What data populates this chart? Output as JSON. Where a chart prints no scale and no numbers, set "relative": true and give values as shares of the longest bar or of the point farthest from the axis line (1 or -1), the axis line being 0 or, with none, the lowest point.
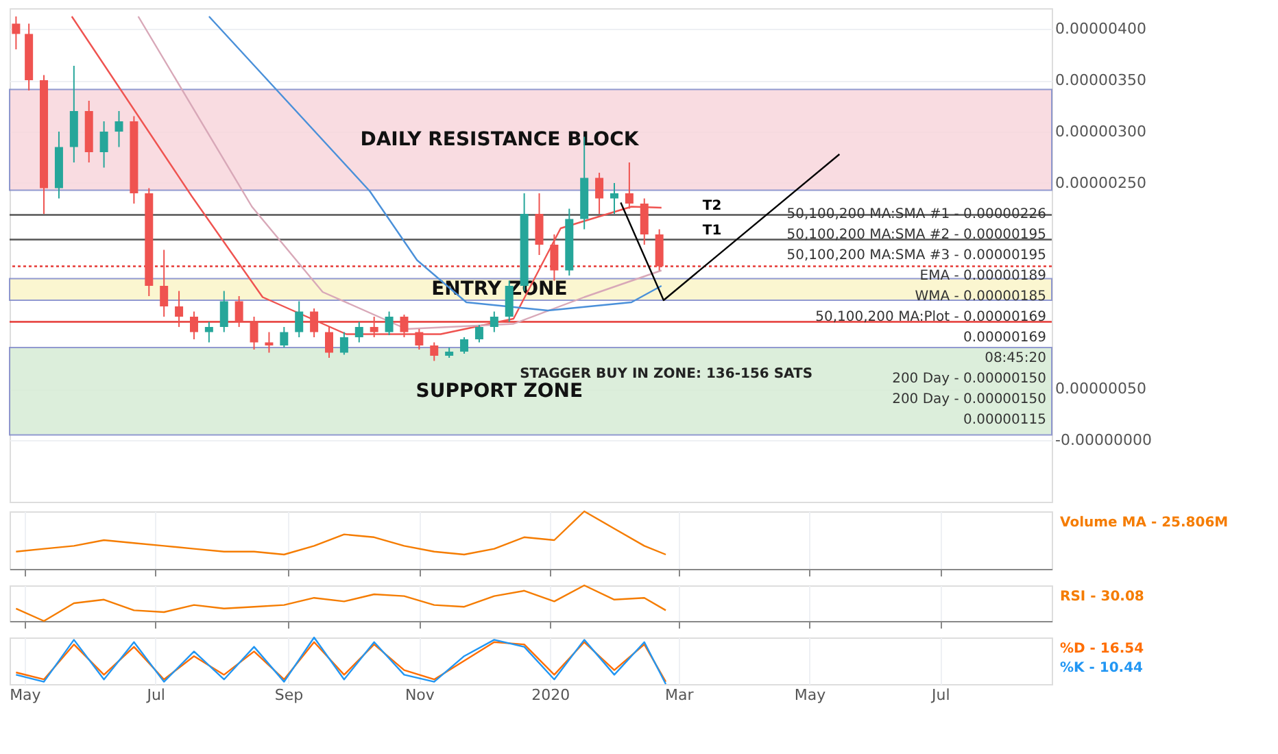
{
  "chart_data": [
    {
      "type": "candlestick",
      "x": [
        "2019-04-27",
        "2019-05-03",
        "2019-05-10",
        "2019-05-17",
        "2019-05-24",
        "2019-05-31",
        "2019-06-07",
        "2019-06-14",
        "2019-06-21",
        "2019-06-28",
        "2019-07-05",
        "2019-07-12",
        "2019-07-19",
        "2019-07-26",
        "2019-08-02",
        "2019-08-09",
        "2019-08-16",
        "2019-08-23",
        "2019-08-30",
        "2019-09-06",
        "2019-09-13",
        "2019-09-20",
        "2019-09-27",
        "2019-10-04",
        "2019-10-11",
        "2019-10-18",
        "2019-10-25",
        "2019-11-01",
        "2019-11-08",
        "2019-11-15",
        "2019-11-22",
        "2019-11-29",
        "2019-12-06",
        "2019-12-13",
        "2019-12-20",
        "2019-12-27",
        "2020-01-03",
        "2020-01-10",
        "2020-01-17",
        "2020-01-24",
        "2020-01-31",
        "2020-02-07",
        "2020-02-14",
        "2020-02-21"
      ],
      "ohlc": [
        [
          4.05e-06,
          4.12e-06,
          3.8e-06,
          3.95e-06
        ],
        [
          3.95e-06,
          4.05e-06,
          3.4e-06,
          3.5e-06
        ],
        [
          3.5e-06,
          3.55e-06,
          2.2e-06,
          2.45e-06
        ],
        [
          2.45e-06,
          3e-06,
          2.35e-06,
          2.85e-06
        ],
        [
          2.85e-06,
          3.64e-06,
          2.7e-06,
          3.2e-06
        ],
        [
          3.2e-06,
          3.3e-06,
          2.7e-06,
          2.8e-06
        ],
        [
          2.8e-06,
          3.1e-06,
          2.65e-06,
          3e-06
        ],
        [
          3e-06,
          3.2e-06,
          2.85e-06,
          3.1e-06
        ],
        [
          3.1e-06,
          3.15e-06,
          2.3e-06,
          2.4e-06
        ],
        [
          2.4e-06,
          2.45e-06,
          1.4e-06,
          1.5e-06
        ],
        [
          1.5e-06,
          1.85e-06,
          1.2e-06,
          1.3e-06
        ],
        [
          1.3e-06,
          1.45e-06,
          1.1e-06,
          1.2e-06
        ],
        [
          1.2e-06,
          1.25e-06,
          9.8e-07,
          1.05e-06
        ],
        [
          1.05e-06,
          1.15e-06,
          9.5e-07,
          1.1e-06
        ],
        [
          1.1e-06,
          1.45e-06,
          1.05e-06,
          1.35e-06
        ],
        [
          1.35e-06,
          1.4e-06,
          1.1e-06,
          1.15e-06
        ],
        [
          1.15e-06,
          1.2e-06,
          8.8e-07,
          9.5e-07
        ],
        [
          9.5e-07,
          1.05e-06,
          8.5e-07,
          9.2e-07
        ],
        [
          9.2e-07,
          1.1e-06,
          9e-07,
          1.05e-06
        ],
        [
          1.05e-06,
          1.35e-06,
          1e-06,
          1.25e-06
        ],
        [
          1.25e-06,
          1.28e-06,
          1e-06,
          1.05e-06
        ],
        [
          1.05e-06,
          1.1e-06,
          8e-07,
          8.5e-07
        ],
        [
          8.5e-07,
          1.05e-06,
          8.3e-07,
          1e-06
        ],
        [
          1e-06,
          1.15e-06,
          9.5e-07,
          1.1e-06
        ],
        [
          1.1e-06,
          1.2e-06,
          1e-06,
          1.05e-06
        ],
        [
          1.05e-06,
          1.25e-06,
          1.02e-06,
          1.2e-06
        ],
        [
          1.2e-06,
          1.22e-06,
          1e-06,
          1.05e-06
        ],
        [
          1.05e-06,
          1.08e-06,
          8.8e-07,
          9.2e-07
        ],
        [
          9.2e-07,
          9.5e-07,
          7.7e-07,
          8.2e-07
        ],
        [
          8.2e-07,
          9e-07,
          8e-07,
          8.6e-07
        ],
        [
          8.6e-07,
          1e-06,
          8.4e-07,
          9.8e-07
        ],
        [
          9.8e-07,
          1.12e-06,
          9.5e-07,
          1.1e-06
        ],
        [
          1.1e-06,
          1.25e-06,
          1.05e-06,
          1.2e-06
        ],
        [
          1.2e-06,
          1.55e-06,
          1.15e-06,
          1.5e-06
        ],
        [
          1.5e-06,
          2.4e-06,
          1.45e-06,
          2.2e-06
        ],
        [
          2.2e-06,
          2.4e-06,
          1.8e-06,
          1.9e-06
        ],
        [
          1.9e-06,
          2e-06,
          1.55e-06,
          1.65e-06
        ],
        [
          1.65e-06,
          2.25e-06,
          1.6e-06,
          2.15e-06
        ],
        [
          2.15e-06,
          2.95e-06,
          2.05e-06,
          2.55e-06
        ],
        [
          2.55e-06,
          2.6e-06,
          2.2e-06,
          2.35e-06
        ],
        [
          2.35e-06,
          2.5e-06,
          2.2e-06,
          2.4e-06
        ],
        [
          2.4e-06,
          2.7e-06,
          2.25e-06,
          2.3e-06
        ],
        [
          2.3e-06,
          2.35e-06,
          1.9e-06,
          2e-06
        ],
        [
          2e-06,
          2.05e-06,
          1.65e-06,
          1.69e-06
        ]
      ],
      "colors": [
        "#ef5350",
        "#ef5350",
        "#ef5350",
        "#26a69a",
        "#26a69a",
        "#ef5350",
        "#26a69a",
        "#26a69a",
        "#ef5350",
        "#ef5350",
        "#ef5350",
        "#ef5350",
        "#ef5350",
        "#26a69a",
        "#26a69a",
        "#ef5350",
        "#ef5350",
        "#ef5350",
        "#26a69a",
        "#26a69a",
        "#ef5350",
        "#ef5350",
        "#26a69a",
        "#26a69a",
        "#ef5350",
        "#26a69a",
        "#ef5350",
        "#ef5350",
        "#ef5350",
        "#26a69a",
        "#26a69a",
        "#26a69a",
        "#26a69a",
        "#26a69a",
        "#26a69a",
        "#ef5350",
        "#ef5350",
        "#26a69a",
        "#26a69a",
        "#ef5350",
        "#26a69a",
        "#ef5350",
        "#ef5350",
        "#ef5350"
      ],
      "series": [
        {
          "type": "line",
          "color": "#ef5350",
          "x": [
            "2019-05-23",
            "2019-07-18",
            "2019-08-20",
            "2019-09-28",
            "2019-11-11",
            "2019-12-15",
            "2020-01-06",
            "2020-02-08",
            "2020-02-22"
          ],
          "values": [
            4.12e-06,
            2.37e-06,
            1.39e-06,
            1.03e-06,
            1.03e-06,
            1.18e-06,
            2.06e-06,
            2.27e-06,
            2.26e-06
          ]
        },
        {
          "type": "line",
          "color": "#d8a8b8",
          "x": [
            "2019-06-23",
            "2019-08-15",
            "2019-09-17",
            "2019-10-26",
            "2019-12-15",
            "2020-01-17",
            "2020-02-22"
          ],
          "values": [
            4.12e-06,
            2.27e-06,
            1.44e-06,
            1.08e-06,
            1.13e-06,
            1.39e-06,
            1.65e-06
          ]
        },
        {
          "type": "line",
          "color": "#4a90d9",
          "x": [
            "2019-07-26",
            "2019-10-09",
            "2019-10-31",
            "2019-11-23",
            "2019-12-31",
            "2020-02-08",
            "2020-02-22"
          ],
          "values": [
            4.12e-06,
            2.42e-06,
            1.75e-06,
            1.34e-06,
            1.26e-06,
            1.34e-06,
            1.5e-06
          ]
        },
        {
          "type": "line",
          "color": "#000000",
          "x": [
            "2020-02-03",
            "2020-02-23",
            "2020-05-15"
          ],
          "values": [
            2.31e-06,
            1.36e-06,
            2.78e-06
          ]
        }
      ],
      "bands": [
        {
          "axis": "y",
          "from": 2.43e-06,
          "to": 3.41e-06,
          "label": "DAILY RESISTANCE BLOCK",
          "color": "#f8d7dc"
        },
        {
          "axis": "y",
          "from": 1.36e-06,
          "to": 1.57e-06,
          "label": "ENTRY ZONE",
          "color": "#fbf5c8"
        },
        {
          "axis": "y",
          "from": 5e-08,
          "to": 9e-07,
          "label": "SUPPORT ZONE",
          "color": "#d7ecd5"
        }
      ],
      "ref_lines": [
        {
          "axis": "y",
          "value": 1.15e-06,
          "color": "#e53935",
          "line_style": "solid"
        },
        {
          "axis": "y",
          "value": 1.69e-06,
          "color": "#e53935",
          "line_style": "dotted"
        },
        {
          "axis": "y",
          "value": 1.95e-06,
          "label": "T1",
          "color": "#555555",
          "line_style": "solid"
        },
        {
          "axis": "y",
          "value": 2.19e-06,
          "label": "T2",
          "color": "#555555",
          "line_style": "solid"
        }
      ],
      "annotations": [
        "STAGGER BUY IN ZONE: 136-156 SATS",
        "50,100,200 MA:SMA #1 - 0.00000226",
        "50,100,200 MA:SMA #2 - 0.00000195",
        "50,100,200 MA:SMA #3 - 0.00000195",
        "EMA - 0.00000189",
        "WMA - 0.00000185",
        "50,100,200 MA:Plot - 0.00000169",
        "0.00000169",
        "08:45:20",
        "200 Day - 0.00000150",
        "200 Day - 0.00000150",
        "0.00000115"
      ],
      "xlim": [
        "2019-04-24",
        "2020-08-22"
      ],
      "xticks": [
        {
          "value": "2019-05-01",
          "label": null
        },
        {
          "value": "2019-07-01",
          "label": null
        },
        {
          "value": "2019-09-01",
          "label": null
        },
        {
          "value": "2019-11-01",
          "label": null
        },
        {
          "value": "2020-01-01",
          "label": null
        },
        {
          "value": "2020-03-01",
          "label": null
        },
        {
          "value": "2020-05-01",
          "label": null
        },
        {
          "value": "2020-07-01",
          "label": null
        }
      ],
      "ylim": [
        -6e-07,
        4.2e-06
      ],
      "yticks": [
        {
          "value": 0,
          "label": "-0.00000000"
        },
        {
          "value": 5e-07,
          "label": "0.00000050"
        },
        {
          "value": 2.5e-06,
          "label": "0.00000250"
        },
        {
          "value": 3e-06,
          "label": "0.00000300"
        },
        {
          "value": 3.5e-06,
          "label": "0.00000350"
        },
        {
          "value": 4e-06,
          "label": "0.00000400"
        }
      ],
      "grid": true,
      "legend": false,
      "tick_labels": "y"
    },
    {
      "type": "line",
      "relative": true,
      "x": [
        "2019-04-27",
        "2019-05-10",
        "2019-05-24",
        "2019-06-07",
        "2019-06-21",
        "2019-07-05",
        "2019-07-19",
        "2019-08-02",
        "2019-08-16",
        "2019-08-30",
        "2019-09-13",
        "2019-09-27",
        "2019-10-11",
        "2019-10-25",
        "2019-11-08",
        "2019-11-22",
        "2019-12-06",
        "2019-12-20",
        "2020-01-03",
        "2020-01-17",
        "2020-01-31",
        "2020-02-14",
        "2020-02-24"
      ],
      "series": [
        {
          "name": "Volume MA",
          "color": "#f57c00",
          "values": [
            0.3,
            0.35,
            0.4,
            0.5,
            0.45,
            0.4,
            0.35,
            0.3,
            0.3,
            0.25,
            0.4,
            0.6,
            0.55,
            0.4,
            0.3,
            0.25,
            0.35,
            0.55,
            0.5,
            1.0,
            0.7,
            0.4,
            0.25
          ]
        }
      ],
      "annotations": [
        "- 25.806M"
      ],
      "xlim": [
        "2019-04-24",
        "2020-08-22"
      ],
      "xticks": [
        {
          "value": "2019-05-01",
          "label": null
        },
        {
          "value": "2019-07-01",
          "label": null
        },
        {
          "value": "2019-09-01",
          "label": null
        },
        {
          "value": "2019-11-01",
          "label": null
        },
        {
          "value": "2020-01-01",
          "label": null
        },
        {
          "value": "2020-03-01",
          "label": null
        },
        {
          "value": "2020-05-01",
          "label": null
        },
        {
          "value": "2020-07-01",
          "label": null
        }
      ],
      "grid": "x",
      "legend": false,
      "tick_labels": false
    },
    {
      "type": "line",
      "relative": true,
      "x": [
        "2019-04-27",
        "2019-05-10",
        "2019-05-24",
        "2019-06-07",
        "2019-06-21",
        "2019-07-05",
        "2019-07-19",
        "2019-08-02",
        "2019-08-16",
        "2019-08-30",
        "2019-09-13",
        "2019-09-27",
        "2019-10-11",
        "2019-10-25",
        "2019-11-08",
        "2019-11-22",
        "2019-12-06",
        "2019-12-20",
        "2020-01-03",
        "2020-01-17",
        "2020-01-31",
        "2020-02-14",
        "2020-02-24"
      ],
      "series": [
        {
          "name": "RSI",
          "color": "#f57c00",
          "values": [
            0.35,
            0.0,
            0.5,
            0.6,
            0.3,
            0.25,
            0.45,
            0.35,
            0.4,
            0.45,
            0.65,
            0.55,
            0.75,
            0.7,
            0.45,
            0.4,
            0.7,
            0.85,
            0.55,
            1.0,
            0.6,
            0.65,
            0.3
          ]
        }
      ],
      "annotations": [
        "- 30.08"
      ],
      "xlim": [
        "2019-04-24",
        "2020-08-22"
      ],
      "xticks": [
        {
          "value": "2019-05-01",
          "label": null
        },
        {
          "value": "2019-07-01",
          "label": null
        },
        {
          "value": "2019-09-01",
          "label": null
        },
        {
          "value": "2019-11-01",
          "label": null
        },
        {
          "value": "2020-01-01",
          "label": null
        },
        {
          "value": "2020-03-01",
          "label": null
        },
        {
          "value": "2020-05-01",
          "label": null
        },
        {
          "value": "2020-07-01",
          "label": null
        }
      ],
      "grid": "x",
      "legend": false,
      "tick_labels": false
    },
    {
      "type": "line",
      "relative": true,
      "x": [
        "2019-04-27",
        "2019-05-10",
        "2019-05-24",
        "2019-06-07",
        "2019-06-21",
        "2019-07-05",
        "2019-07-19",
        "2019-08-02",
        "2019-08-16",
        "2019-08-30",
        "2019-09-13",
        "2019-09-27",
        "2019-10-11",
        "2019-10-25",
        "2019-11-08",
        "2019-11-22",
        "2019-12-06",
        "2019-12-20",
        "2020-01-03",
        "2020-01-17",
        "2020-01-31",
        "2020-02-14",
        "2020-02-24"
      ],
      "series": [
        {
          "name": "%D",
          "color": "#ff6d00",
          "values": [
            0.25,
            0.1,
            0.85,
            0.2,
            0.8,
            0.1,
            0.6,
            0.2,
            0.7,
            0.1,
            0.9,
            0.2,
            0.85,
            0.3,
            0.1,
            0.5,
            0.9,
            0.85,
            0.2,
            0.9,
            0.3,
            0.85,
            0.05
          ]
        },
        {
          "name": "%K",
          "color": "#2196f3",
          "values": [
            0.2,
            0.05,
            0.95,
            0.1,
            0.9,
            0.05,
            0.7,
            0.1,
            0.8,
            0.05,
            1.0,
            0.1,
            0.9,
            0.2,
            0.05,
            0.6,
            0.95,
            0.8,
            0.1,
            0.95,
            0.2,
            0.9,
            0.0
          ]
        }
      ],
      "annotations": [
        "- 16.54",
        "- 10.44"
      ],
      "xlim": [
        "2019-04-24",
        "2020-08-22"
      ],
      "xticks": [
        {
          "value": "2019-05-01",
          "label": "May"
        },
        {
          "value": "2019-07-01",
          "label": "Jul"
        },
        {
          "value": "2019-09-01",
          "label": "Sep"
        },
        {
          "value": "2019-11-01",
          "label": "Nov"
        },
        {
          "value": "2020-01-01",
          "label": "2020"
        },
        {
          "value": "2020-03-01",
          "label": "Mar"
        },
        {
          "value": "2020-05-01",
          "label": "May"
        },
        {
          "value": "2020-07-01",
          "label": "Jul"
        }
      ],
      "grid": "x",
      "legend": false,
      "tick_labels": "x"
    }
  ]
}
